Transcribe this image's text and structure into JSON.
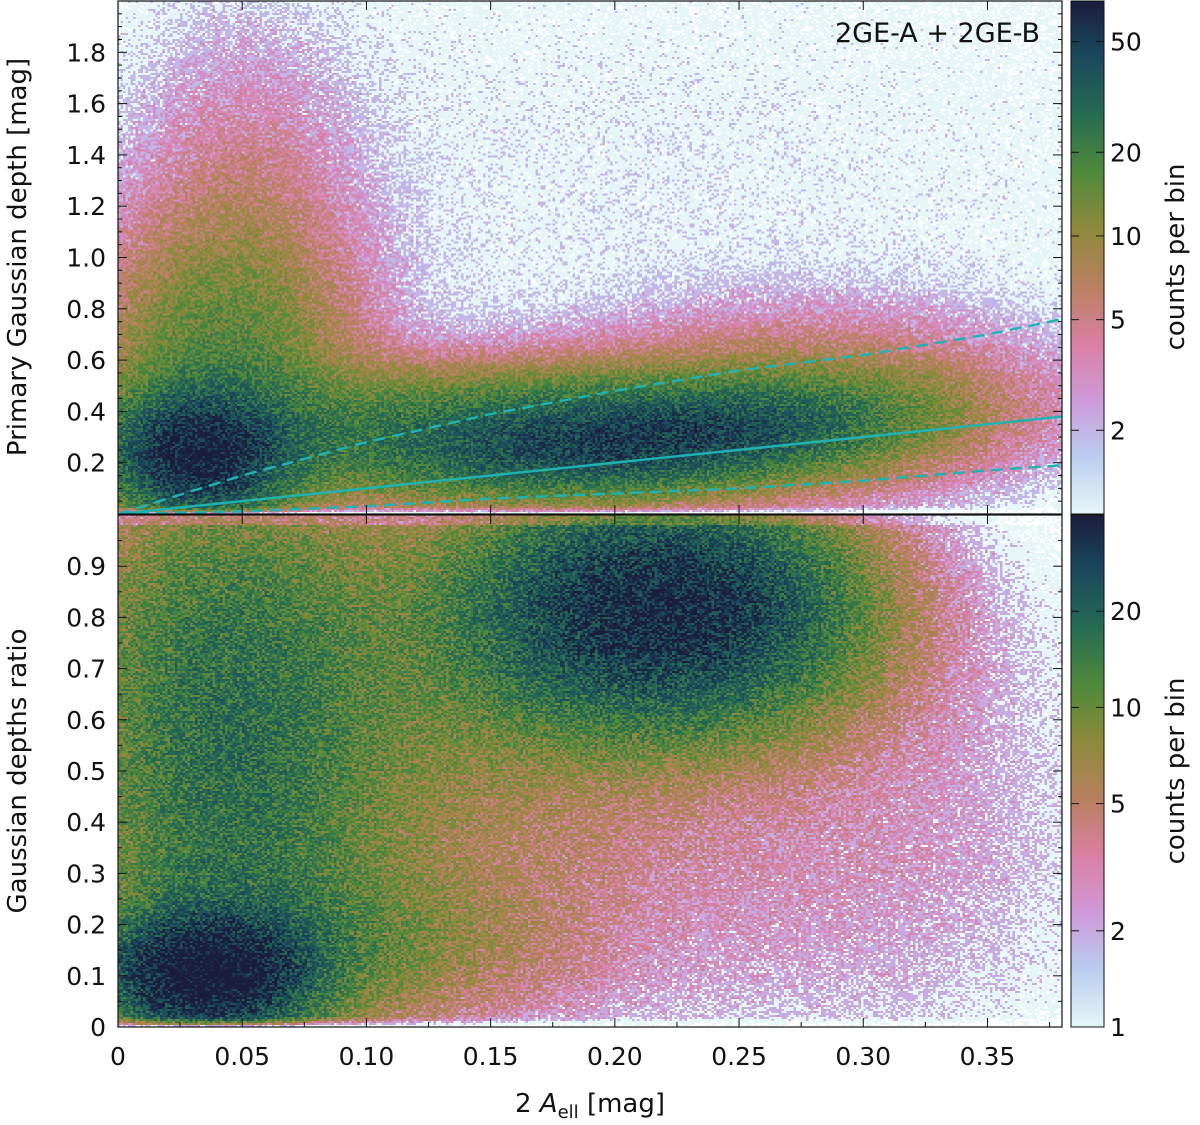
{
  "figure": {
    "xlabel_prefix": "2",
    "xlabel_symbol": "A",
    "xlabel_sub": "ell",
    "xlabel_unit": "[mag]"
  },
  "chart_data": [
    {
      "type": "heatmap",
      "panel": "top",
      "annotation": "2GE-A + 2GE-B",
      "ylabel": "Primary Gaussian depth  [mag]",
      "xlim": [
        0.0,
        0.38
      ],
      "ylim": [
        0.0,
        2.0
      ],
      "x_ticks": [
        0,
        0.05,
        0.1,
        0.15,
        0.2,
        0.25,
        0.3,
        0.35
      ],
      "y_ticks": [
        0.2,
        0.4,
        0.6,
        0.8,
        1.0,
        1.2,
        1.4,
        1.6,
        1.8
      ],
      "y_tick_labels": [
        "0.2",
        "0.4",
        "0.6",
        "0.8",
        "1.0",
        "1.2",
        "1.4",
        "1.6",
        "1.8"
      ],
      "colorbar": {
        "label": "counts per bin",
        "scale": "log",
        "range": [
          1,
          70
        ],
        "ticks": [
          2,
          5,
          10,
          20,
          50
        ],
        "tick_labels": [
          "2",
          "5",
          "10",
          "20",
          "50"
        ]
      },
      "density_clusters": [
        {
          "x": 0.032,
          "y": 0.22,
          "peak_counts": 60
        },
        {
          "x": 0.225,
          "y": 0.31,
          "peak_counts": 65
        }
      ],
      "overlay_lines": [
        {
          "style": "solid",
          "color": "#1fb3b3",
          "x": [
            0.0,
            0.38
          ],
          "y": [
            0.0,
            0.38
          ]
        },
        {
          "style": "dashed",
          "color": "#1fb3b3",
          "x": [
            0.0,
            0.05,
            0.1,
            0.15,
            0.2,
            0.25,
            0.3,
            0.35,
            0.38
          ],
          "y": [
            0.0,
            0.15,
            0.28,
            0.39,
            0.48,
            0.56,
            0.62,
            0.7,
            0.76
          ]
        },
        {
          "style": "dashed",
          "color": "#1fb3b3",
          "x": [
            0.0,
            0.05,
            0.1,
            0.15,
            0.2,
            0.25,
            0.3,
            0.35,
            0.38
          ],
          "y": [
            0.0,
            0.01,
            0.03,
            0.06,
            0.08,
            0.1,
            0.13,
            0.17,
            0.19
          ]
        }
      ]
    },
    {
      "type": "heatmap",
      "panel": "bottom",
      "ylabel": "Gaussian depths ratio",
      "xlim": [
        0.0,
        0.38
      ],
      "ylim": [
        0.0,
        1.0
      ],
      "x_ticks": [
        0,
        0.05,
        0.1,
        0.15,
        0.2,
        0.25,
        0.3,
        0.35
      ],
      "x_tick_labels": [
        "0",
        "0.05",
        "0.10",
        "0.15",
        "0.20",
        "0.25",
        "0.30",
        "0.35"
      ],
      "y_ticks": [
        0,
        0.1,
        0.2,
        0.3,
        0.4,
        0.5,
        0.6,
        0.7,
        0.8,
        0.9
      ],
      "y_tick_labels": [
        "0",
        "0.1",
        "0.2",
        "0.3",
        "0.4",
        "0.5",
        "0.6",
        "0.7",
        "0.8",
        "0.9"
      ],
      "colorbar": {
        "label": "counts per bin",
        "scale": "log",
        "range": [
          1,
          40
        ],
        "ticks": [
          1,
          2,
          5,
          10,
          20
        ],
        "tick_labels": [
          "1",
          "2",
          "5",
          "10",
          "20"
        ]
      },
      "density_clusters": [
        {
          "x": 0.035,
          "y": 0.1,
          "peak_counts": 40
        },
        {
          "x": 0.22,
          "y": 0.82,
          "peak_counts": 35
        }
      ]
    }
  ],
  "colormap": [
    "#e6f6f6",
    "#b9cdf0",
    "#cf99d9",
    "#d97fa3",
    "#b8805f",
    "#8f8a3a",
    "#4f8a3b",
    "#266c52",
    "#1a4a5e",
    "#1b1d3d"
  ]
}
